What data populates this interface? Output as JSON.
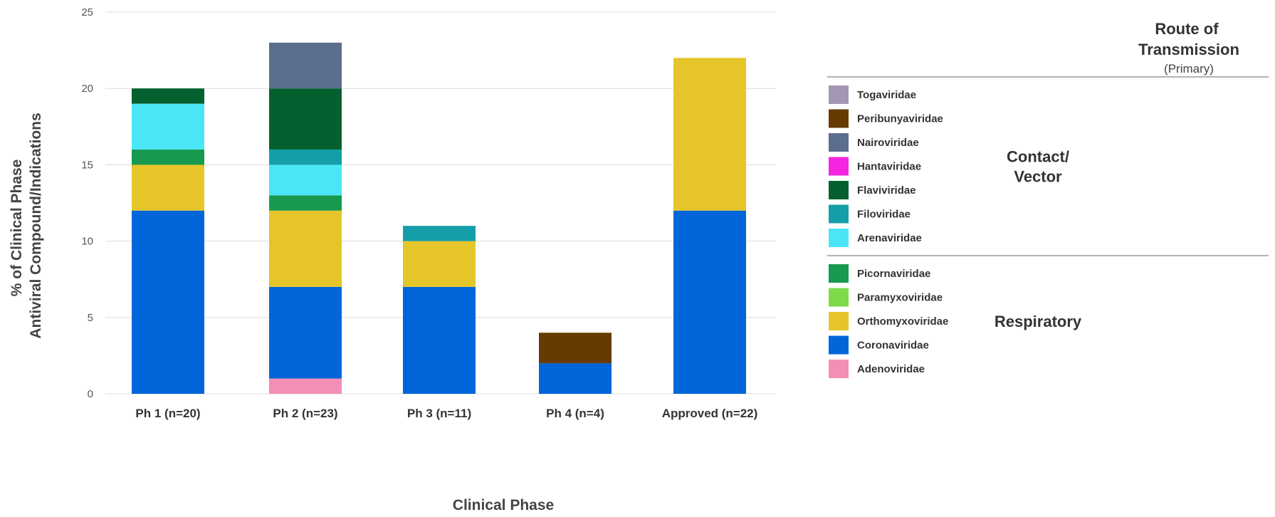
{
  "chart_data": {
    "type": "bar",
    "stacked": true,
    "xlabel": "Clinical Phase",
    "ylabel": [
      "% of Clinical Phase",
      "Antiviral Compound/Indications"
    ],
    "ylim": [
      0,
      25
    ],
    "yticks": [
      0,
      5,
      10,
      15,
      20,
      25
    ],
    "grid": true,
    "categories": [
      "Ph 1 (n=20)",
      "Ph 2 (n=23)",
      "Ph 3 (n=11)",
      "Ph 4 (n=4)",
      "Approved (n=22)"
    ],
    "series": [
      {
        "name": "Adenoviridae",
        "color": "#f38fb7",
        "values": [
          0,
          1,
          0,
          0,
          0
        ]
      },
      {
        "name": "Coronaviridae",
        "color": "#0066d9",
        "values": [
          12,
          6,
          7,
          2,
          12
        ]
      },
      {
        "name": "Orthomyxoviridae",
        "color": "#e6c52a",
        "values": [
          3,
          5,
          3,
          0,
          10
        ]
      },
      {
        "name": "Paramyxoviridae",
        "color": "#7ddb4a",
        "values": [
          0,
          0,
          0,
          0,
          0
        ]
      },
      {
        "name": "Picornaviridae",
        "color": "#179a4f",
        "values": [
          1,
          1,
          0,
          0,
          0
        ]
      },
      {
        "name": "Arenaviridae",
        "color": "#4ae6f7",
        "values": [
          3,
          2,
          0,
          0,
          0
        ]
      },
      {
        "name": "Filoviridae",
        "color": "#149fa8",
        "values": [
          0,
          1,
          1,
          0,
          0
        ]
      },
      {
        "name": "Flaviviridae",
        "color": "#04602e",
        "values": [
          1,
          4,
          0,
          0,
          0
        ]
      },
      {
        "name": "Hantaviridae",
        "color": "#f524e0",
        "values": [
          0,
          0,
          0,
          0,
          0
        ]
      },
      {
        "name": "Nairoviridae",
        "color": "#5b6e8d",
        "values": [
          0,
          3,
          0,
          0,
          0
        ]
      },
      {
        "name": "Peribunyaviridae",
        "color": "#663b02",
        "values": [
          0,
          0,
          0,
          2,
          0
        ]
      },
      {
        "name": "Togaviridae",
        "color": "#a396b4",
        "values": [
          0,
          0,
          0,
          0,
          0
        ]
      }
    ],
    "legend": {
      "title": [
        "Route of",
        "Transmission"
      ],
      "subtitle": "(Primary)",
      "placement": "right",
      "groups": [
        {
          "label": [
            "Contact/",
            "Vector"
          ],
          "items": [
            "Togaviridae",
            "Peribunyaviridae",
            "Nairoviridae",
            "Hantaviridae",
            "Flaviviridae",
            "Filoviridae",
            "Arenaviridae"
          ]
        },
        {
          "label": [
            "Respiratory"
          ],
          "items": [
            "Picornaviridae",
            "Paramyxoviridae",
            "Orthomyxoviridae",
            "Coronaviridae",
            "Adenoviridae"
          ]
        }
      ]
    }
  }
}
